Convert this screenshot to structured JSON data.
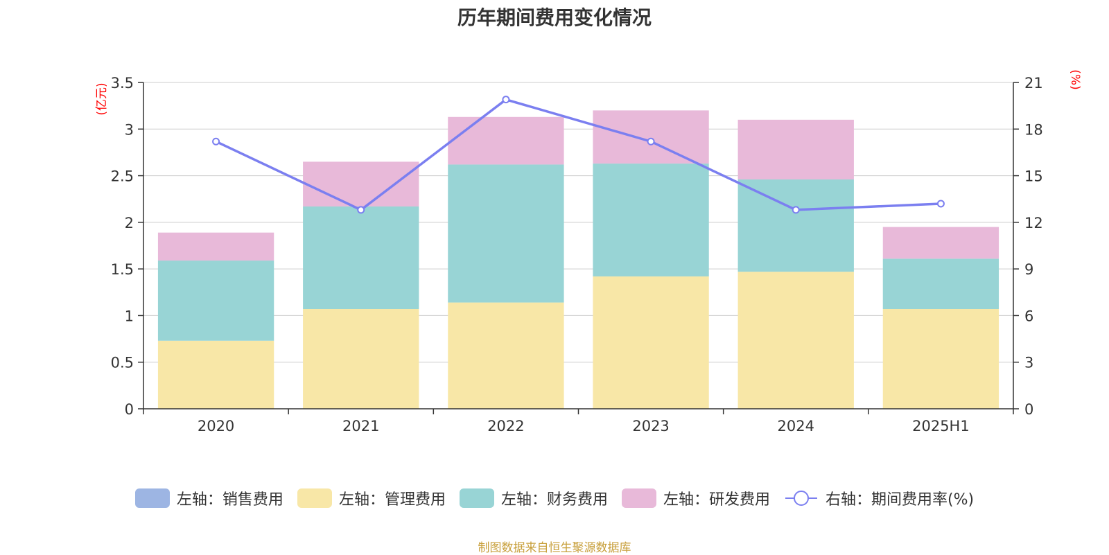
{
  "chart_data": {
    "type": "bar",
    "stacked": true,
    "title": "历年期间费用变化情况",
    "categories": [
      "2020",
      "2021",
      "2022",
      "2023",
      "2024",
      "2025H1"
    ],
    "left_axis": {
      "unit": "(亿元)",
      "ylim": [
        0,
        3.5
      ],
      "ticks": [
        "0",
        "0.5",
        "1",
        "1.5",
        "2",
        "2.5",
        "3",
        "3.5"
      ]
    },
    "right_axis": {
      "unit": "(%)",
      "ylim": [
        0,
        21
      ],
      "ticks": [
        "0",
        "3",
        "6",
        "9",
        "12",
        "15",
        "18",
        "21"
      ]
    },
    "series": [
      {
        "name": "左轴：销售费用",
        "axis": "left",
        "type": "bar",
        "color": "#9db5e3",
        "values": [
          0,
          0,
          0,
          0,
          0,
          0
        ]
      },
      {
        "name": "左轴：管理费用",
        "axis": "left",
        "type": "bar",
        "color": "#f8e7a7",
        "values": [
          0.73,
          1.07,
          1.14,
          1.42,
          1.47,
          1.07
        ]
      },
      {
        "name": "左轴：财务费用",
        "axis": "left",
        "type": "bar",
        "color": "#98d4d5",
        "values": [
          0.86,
          1.1,
          1.48,
          1.21,
          0.99,
          0.54
        ]
      },
      {
        "name": "左轴：研发费用",
        "axis": "left",
        "type": "bar",
        "color": "#e8b9d9",
        "values": [
          0.3,
          0.48,
          0.51,
          0.57,
          0.64,
          0.34
        ]
      },
      {
        "name": "右轴：期间费用率(%)",
        "axis": "right",
        "type": "line",
        "color": "#7b7ff0",
        "values": [
          17.2,
          12.8,
          19.9,
          17.2,
          12.8,
          13.2
        ]
      }
    ],
    "gridlines": true,
    "legend_position": "bottom"
  },
  "source_note": "制图数据来自恒生聚源数据库"
}
